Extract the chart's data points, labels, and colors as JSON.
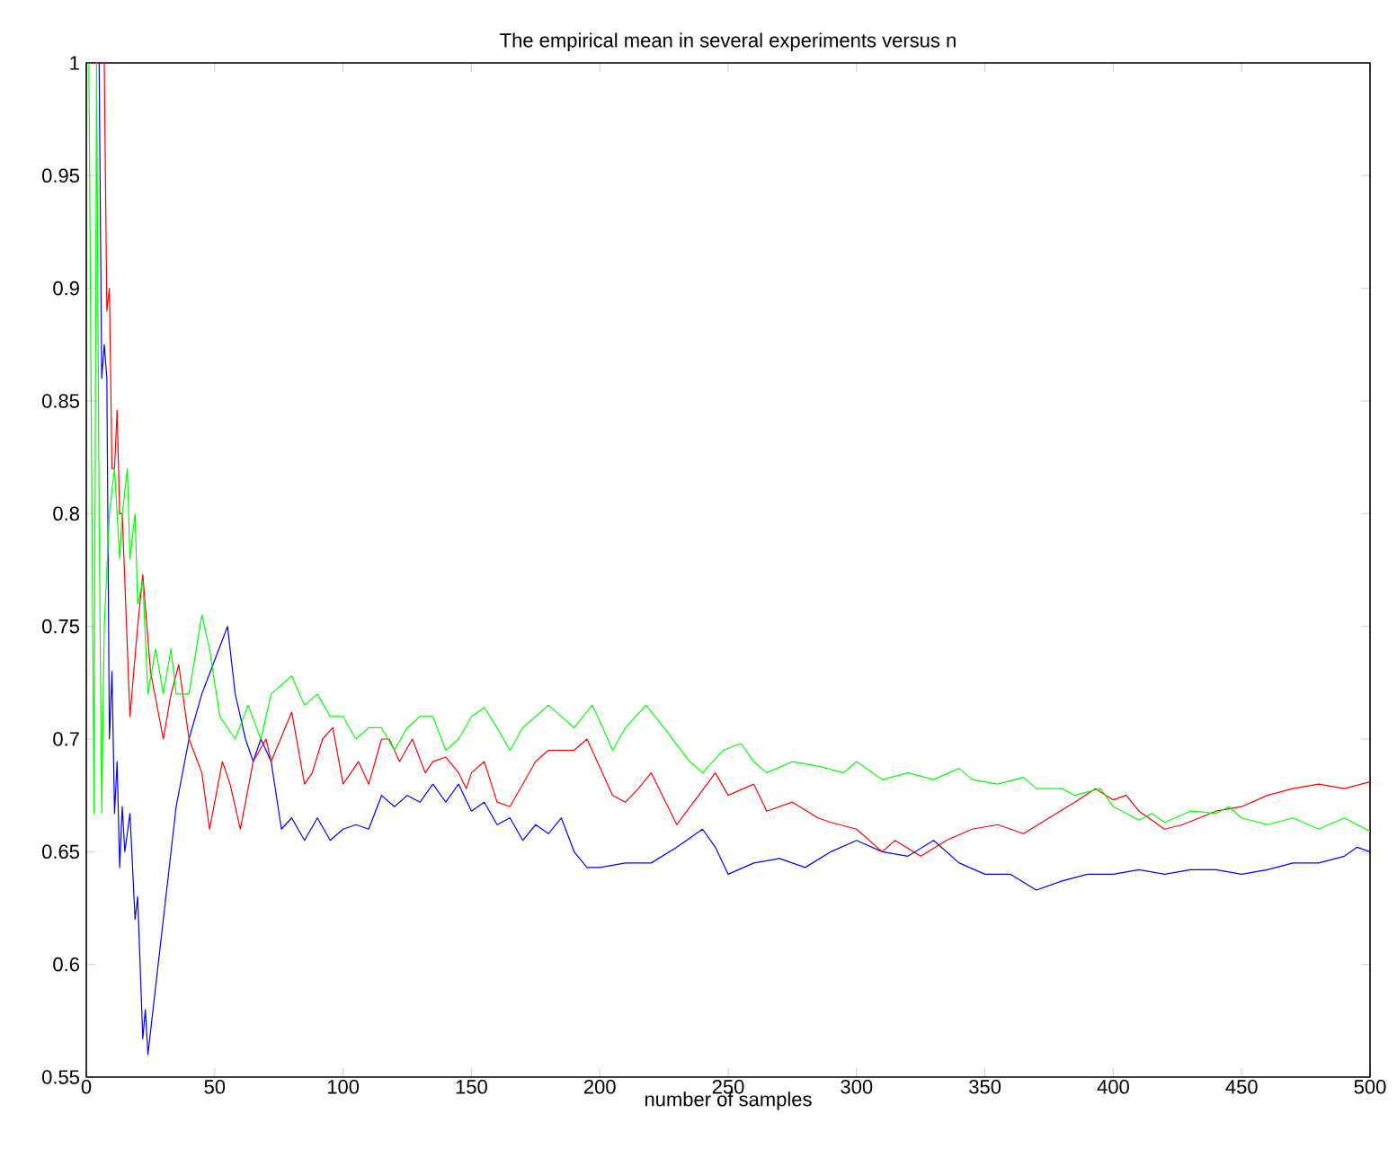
{
  "chart_data": {
    "type": "line",
    "title": "The empirical mean in several experiments versus n",
    "xlabel": "number of samples",
    "xlim": [
      0,
      500
    ],
    "ylim": [
      0.55,
      1
    ],
    "xticks": [
      0,
      50,
      100,
      150,
      200,
      250,
      300,
      350,
      400,
      450,
      500
    ],
    "yticks": [
      0.55,
      0.6,
      0.65,
      0.7,
      0.75,
      0.8,
      0.85,
      0.9,
      0.95,
      1
    ],
    "grid": false,
    "marker": "none",
    "line_style": "solid",
    "series": [
      {
        "color": "#0000ff",
        "x": [
          1,
          5,
          6,
          7,
          8,
          9,
          10,
          11,
          12,
          13,
          14,
          15,
          17,
          19,
          20,
          22,
          23,
          24,
          30,
          35,
          40,
          45,
          50,
          55,
          58,
          62,
          65,
          68,
          72,
          76,
          80,
          85,
          90,
          95,
          100,
          105,
          110,
          115,
          120,
          125,
          130,
          135,
          140,
          145,
          150,
          155,
          160,
          165,
          170,
          175,
          180,
          185,
          190,
          195,
          200,
          210,
          220,
          230,
          240,
          245,
          250,
          260,
          270,
          280,
          290,
          300,
          310,
          320,
          330,
          340,
          350,
          360,
          370,
          380,
          390,
          400,
          410,
          420,
          430,
          440,
          450,
          460,
          470,
          480,
          490,
          495,
          500
        ],
        "values": [
          1,
          1,
          0.86,
          0.875,
          0.86,
          0.7,
          0.73,
          0.667,
          0.69,
          0.643,
          0.67,
          0.65,
          0.667,
          0.62,
          0.63,
          0.567,
          0.58,
          0.56,
          0.62,
          0.67,
          0.7,
          0.72,
          0.735,
          0.75,
          0.72,
          0.7,
          0.69,
          0.7,
          0.69,
          0.66,
          0.665,
          0.655,
          0.665,
          0.655,
          0.66,
          0.662,
          0.66,
          0.675,
          0.67,
          0.675,
          0.672,
          0.68,
          0.672,
          0.68,
          0.668,
          0.672,
          0.662,
          0.665,
          0.655,
          0.662,
          0.658,
          0.665,
          0.65,
          0.643,
          0.643,
          0.645,
          0.645,
          0.652,
          0.66,
          0.652,
          0.64,
          0.645,
          0.647,
          0.643,
          0.65,
          0.655,
          0.65,
          0.648,
          0.655,
          0.645,
          0.64,
          0.64,
          0.633,
          0.637,
          0.64,
          0.64,
          0.642,
          0.64,
          0.642,
          0.642,
          0.64,
          0.642,
          0.645,
          0.645,
          0.648,
          0.652,
          0.65
        ]
      },
      {
        "color": "#ff0000",
        "x": [
          1,
          7,
          8,
          9,
          10,
          11,
          12,
          13,
          14,
          15,
          17,
          20,
          22,
          25,
          30,
          33,
          36,
          40,
          45,
          48,
          53,
          56,
          60,
          65,
          70,
          72,
          80,
          85,
          88,
          92,
          96,
          100,
          106,
          110,
          115,
          118,
          122,
          127,
          132,
          135,
          140,
          145,
          148,
          150,
          155,
          160,
          165,
          175,
          180,
          190,
          195,
          205,
          210,
          215,
          220,
          230,
          245,
          250,
          260,
          265,
          275,
          285,
          290,
          300,
          310,
          315,
          325,
          335,
          345,
          355,
          365,
          375,
          385,
          393,
          400,
          405,
          410,
          420,
          427,
          440,
          450,
          460,
          470,
          480,
          490,
          500
        ],
        "values": [
          1,
          1,
          0.89,
          0.9,
          0.82,
          0.82,
          0.846,
          0.8,
          0.8,
          0.77,
          0.71,
          0.75,
          0.773,
          0.73,
          0.7,
          0.72,
          0.733,
          0.7,
          0.685,
          0.66,
          0.69,
          0.68,
          0.66,
          0.69,
          0.7,
          0.69,
          0.712,
          0.68,
          0.685,
          0.7,
          0.705,
          0.68,
          0.69,
          0.68,
          0.7,
          0.7,
          0.69,
          0.7,
          0.685,
          0.69,
          0.692,
          0.685,
          0.678,
          0.685,
          0.69,
          0.672,
          0.67,
          0.69,
          0.695,
          0.695,
          0.7,
          0.675,
          0.672,
          0.678,
          0.685,
          0.662,
          0.685,
          0.675,
          0.68,
          0.668,
          0.672,
          0.665,
          0.663,
          0.66,
          0.65,
          0.655,
          0.648,
          0.655,
          0.66,
          0.662,
          0.658,
          0.665,
          0.672,
          0.678,
          0.673,
          0.675,
          0.668,
          0.66,
          0.662,
          0.668,
          0.67,
          0.675,
          0.678,
          0.68,
          0.678,
          0.681
        ]
      },
      {
        "color": "#00ff00",
        "x": [
          1,
          3,
          4,
          5,
          6,
          7,
          9,
          11,
          13,
          14,
          16,
          17,
          19,
          20,
          22,
          24,
          27,
          30,
          33,
          35,
          40,
          45,
          48,
          52,
          58,
          63,
          68,
          72,
          80,
          85,
          90,
          95,
          100,
          105,
          110,
          115,
          120,
          125,
          130,
          135,
          140,
          145,
          150,
          155,
          160,
          165,
          170,
          180,
          185,
          190,
          197,
          200,
          205,
          210,
          218,
          225,
          235,
          240,
          248,
          255,
          260,
          265,
          275,
          285,
          295,
          300,
          310,
          320,
          330,
          340,
          345,
          355,
          365,
          370,
          380,
          385,
          395,
          400,
          410,
          415,
          420,
          430,
          440,
          445,
          450,
          460,
          470,
          480,
          490,
          500
        ],
        "values": [
          1,
          0.667,
          1,
          0.8,
          0.667,
          0.75,
          0.8,
          0.82,
          0.78,
          0.8,
          0.82,
          0.78,
          0.8,
          0.76,
          0.77,
          0.72,
          0.74,
          0.72,
          0.74,
          0.72,
          0.72,
          0.755,
          0.74,
          0.71,
          0.7,
          0.715,
          0.7,
          0.72,
          0.728,
          0.715,
          0.72,
          0.71,
          0.71,
          0.7,
          0.705,
          0.705,
          0.695,
          0.705,
          0.71,
          0.71,
          0.695,
          0.7,
          0.71,
          0.714,
          0.705,
          0.695,
          0.705,
          0.715,
          0.71,
          0.705,
          0.715,
          0.708,
          0.695,
          0.705,
          0.715,
          0.705,
          0.69,
          0.685,
          0.695,
          0.698,
          0.69,
          0.685,
          0.69,
          0.688,
          0.685,
          0.69,
          0.682,
          0.685,
          0.682,
          0.687,
          0.682,
          0.68,
          0.683,
          0.678,
          0.678,
          0.675,
          0.678,
          0.67,
          0.664,
          0.667,
          0.663,
          0.668,
          0.667,
          0.67,
          0.665,
          0.662,
          0.665,
          0.66,
          0.665,
          0.659
        ]
      }
    ]
  }
}
